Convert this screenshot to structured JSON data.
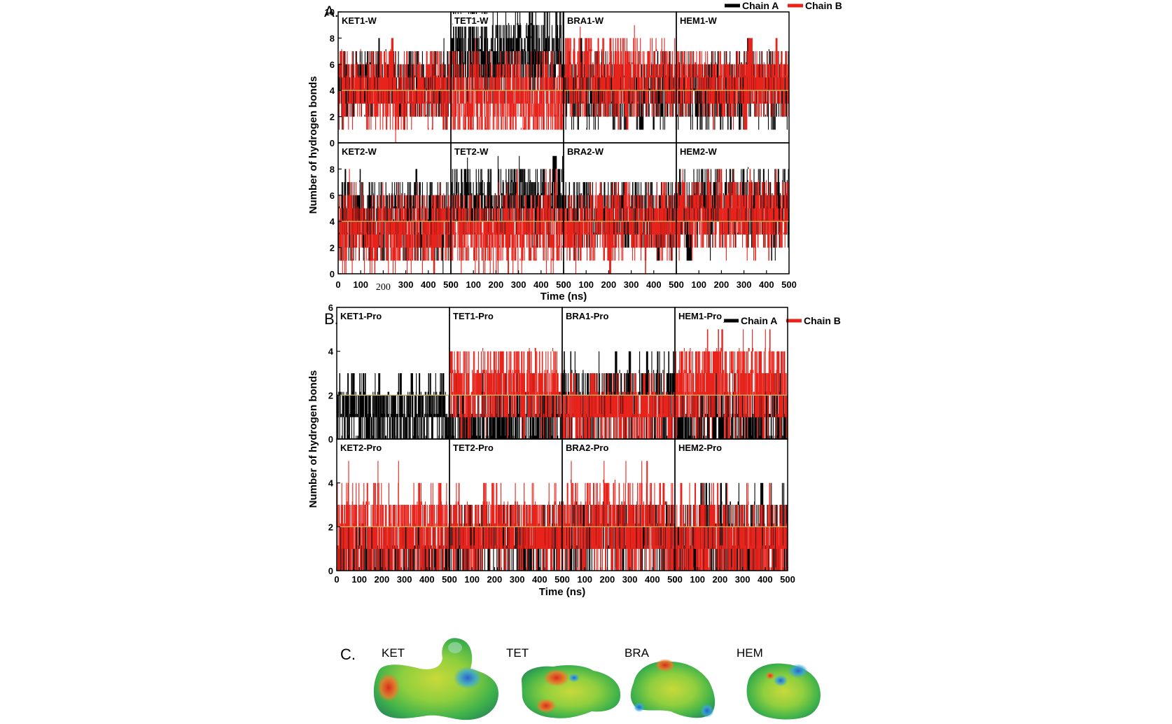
{
  "colors": {
    "chain_a": "#000000",
    "chain_b": "#e8231c",
    "reference_line": "#c8b45a"
  },
  "panel_letters": {
    "A": "A.",
    "B": "B.",
    "C": "C."
  },
  "legend": {
    "chain_a": "Chain A",
    "chain_b": "Chain B"
  },
  "chart_data": [
    {
      "type": "line",
      "group": "A",
      "ylabel": "Number of  hydrogen bonds",
      "xlabel": "Time (ns)",
      "xlim": [
        0,
        500
      ],
      "ylim": [
        0,
        10
      ],
      "xticks": [
        "0",
        "100",
        "200",
        "300",
        "400",
        "500"
      ],
      "yticks_top_row": [
        "0",
        "2",
        "4",
        "6",
        "8",
        "10"
      ],
      "yticks_bottom_row": [
        "0",
        "2",
        "4",
        "6",
        "8"
      ],
      "reference_y": 4,
      "series_names": [
        "Chain A",
        "Chain B"
      ],
      "subplots": [
        {
          "title": "KET1-W",
          "chain_a": {
            "mean": 4.3,
            "min": 1,
            "max": 8
          },
          "chain_b": {
            "mean": 4.0,
            "min": 0,
            "max": 8
          }
        },
        {
          "title": "TET1-W",
          "chain_a": {
            "mean": 6.5,
            "min": 1,
            "max": 10
          },
          "chain_b": {
            "mean": 3.5,
            "min": 1,
            "max": 10
          }
        },
        {
          "title": "BRA1-W",
          "chain_a": {
            "mean": 4.0,
            "min": 1,
            "max": 8
          },
          "chain_b": {
            "mean": 5.0,
            "min": 1,
            "max": 9
          }
        },
        {
          "title": "HEM1-W",
          "chain_a": {
            "mean": 4.0,
            "min": 1,
            "max": 8
          },
          "chain_b": {
            "mean": 4.5,
            "min": 1,
            "max": 8
          }
        },
        {
          "title": "KET2-W",
          "chain_a": {
            "mean": 4.0,
            "min": 0,
            "max": 8
          },
          "chain_b": {
            "mean": 3.5,
            "min": 0,
            "max": 8
          }
        },
        {
          "title": "TET2-W",
          "chain_a": {
            "mean": 5.5,
            "min": 1,
            "max": 9
          },
          "chain_b": {
            "mean": 3.3,
            "min": 0,
            "max": 8
          }
        },
        {
          "title": "BRA2-W",
          "chain_a": {
            "mean": 4.3,
            "min": 1,
            "max": 8
          },
          "chain_b": {
            "mean": 3.8,
            "min": 0,
            "max": 7
          }
        },
        {
          "title": "HEM2-W",
          "chain_a": {
            "mean": 5.0,
            "min": 1,
            "max": 8
          },
          "chain_b": {
            "mean": 4.6,
            "min": 1,
            "max": 8
          }
        }
      ]
    },
    {
      "type": "line",
      "group": "B",
      "ylabel": "Number of  hydrogen bonds",
      "xlabel": "Time (ns)",
      "xlim": [
        0,
        500
      ],
      "ylim": [
        0,
        6
      ],
      "xticks": [
        "0",
        "100",
        "200",
        "300",
        "400",
        "500"
      ],
      "yticks_top_row": [
        "0",
        "2",
        "4",
        "6"
      ],
      "yticks_bottom_row": [
        "0",
        "2",
        "4"
      ],
      "reference_y": 2,
      "series_names": [
        "Chain A",
        "Chain B"
      ],
      "subplots": [
        {
          "title": "KET1-Pro",
          "chain_a": {
            "mean": 1.2,
            "min": 0,
            "max": 3
          },
          "chain_b": {
            "mean": 0.0,
            "min": 0,
            "max": 0
          }
        },
        {
          "title": "TET1-Pro",
          "chain_a": {
            "mean": 0.8,
            "min": 0,
            "max": 3
          },
          "chain_b": {
            "mean": 2.3,
            "min": 0,
            "max": 4
          }
        },
        {
          "title": "BRA1-Pro",
          "chain_a": {
            "mean": 1.6,
            "min": 0,
            "max": 4
          },
          "chain_b": {
            "mean": 1.3,
            "min": 0,
            "max": 3
          }
        },
        {
          "title": "HEM1-Pro",
          "chain_a": {
            "mean": 0.8,
            "min": 0,
            "max": 3
          },
          "chain_b": {
            "mean": 2.4,
            "min": 0,
            "max": 5
          }
        },
        {
          "title": "KET2-Pro",
          "chain_a": {
            "mean": 0.8,
            "min": 0,
            "max": 2
          },
          "chain_b": {
            "mean": 1.6,
            "min": 0,
            "max": 5
          }
        },
        {
          "title": "TET2-Pro",
          "chain_a": {
            "mean": 1.4,
            "min": 0,
            "max": 3
          },
          "chain_b": {
            "mean": 1.8,
            "min": 0,
            "max": 4
          }
        },
        {
          "title": "BRA2-Pro",
          "chain_a": {
            "mean": 1.6,
            "min": 0,
            "max": 3
          },
          "chain_b": {
            "mean": 1.9,
            "min": 0,
            "max": 5
          }
        },
        {
          "title": "HEM2-Pro",
          "chain_a": {
            "mean": 1.2,
            "min": 0,
            "max": 4
          },
          "chain_b": {
            "mean": 1.3,
            "min": 0,
            "max": 4
          }
        }
      ]
    }
  ],
  "molecules": {
    "labels": [
      "KET",
      "TET",
      "BRA",
      "HEM"
    ],
    "surface_type": "electrostatic-potential-surface"
  }
}
